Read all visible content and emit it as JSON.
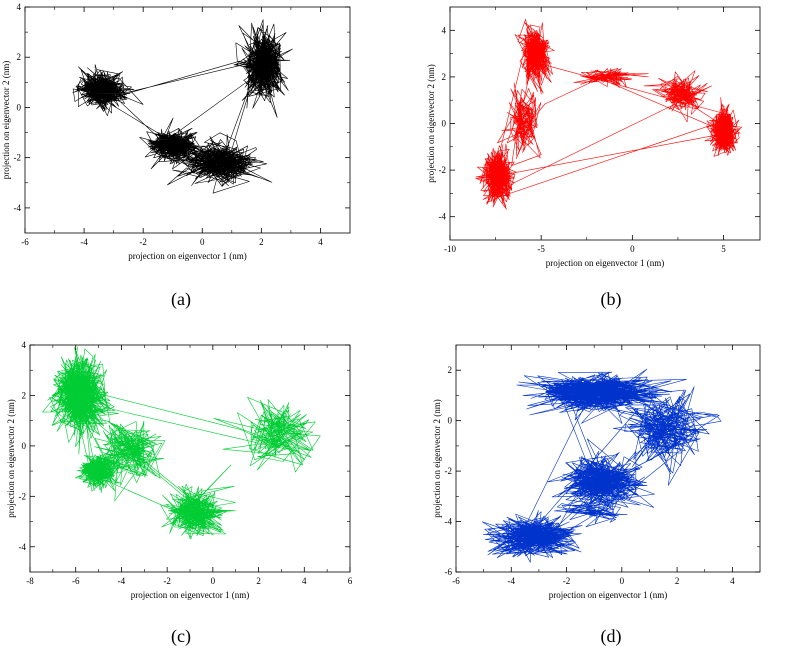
{
  "chart_data": [
    {
      "type": "line",
      "panel_label": "(a)",
      "xlabel": "projection on eigenvector 1 (nm)",
      "ylabel": "projection on eigenvector 2 (nm)",
      "xlim": [
        -6,
        5
      ],
      "ylim": [
        -5,
        4
      ],
      "xticks": [
        -6,
        -4,
        -2,
        0,
        2,
        4
      ],
      "yticks": [
        -4,
        -2,
        0,
        2,
        4
      ],
      "color": "#000000",
      "grid": false,
      "series": [
        {
          "clusters": [
            {
              "x": -3.4,
              "y": 0.7,
              "sx": 0.55,
              "sy": 0.45
            },
            {
              "x": 0.6,
              "y": -2.2,
              "sx": 0.8,
              "sy": 0.5
            },
            {
              "x": 2.1,
              "y": 1.7,
              "sx": 0.45,
              "sy": 0.8
            },
            {
              "x": -1.0,
              "y": -1.5,
              "sx": 0.5,
              "sy": 0.4
            }
          ]
        }
      ]
    },
    {
      "type": "line",
      "panel_label": "(b)",
      "xlabel": "projection on eigenvector 1 (nm)",
      "ylabel": "projection on eigenvector 2 (nm)",
      "xlim": [
        -10,
        7
      ],
      "ylim": [
        -5,
        5
      ],
      "xticks": [
        -10,
        -5,
        0,
        5
      ],
      "yticks": [
        -4,
        -2,
        0,
        2,
        4
      ],
      "color": "#ff0000",
      "grid": false,
      "series": [
        {
          "clusters": [
            {
              "x": -5.3,
              "y": 3.0,
              "sx": 0.5,
              "sy": 0.7
            },
            {
              "x": -6.0,
              "y": 0.0,
              "sx": 0.6,
              "sy": 0.9
            },
            {
              "x": -7.4,
              "y": -2.3,
              "sx": 0.5,
              "sy": 0.7
            },
            {
              "x": 2.6,
              "y": 1.3,
              "sx": 0.8,
              "sy": 0.45
            },
            {
              "x": 5.0,
              "y": -0.3,
              "sx": 0.45,
              "sy": 0.6
            },
            {
              "x": -1.2,
              "y": 2.0,
              "sx": 1.0,
              "sy": 0.25
            }
          ]
        }
      ]
    },
    {
      "type": "line",
      "panel_label": "(c)",
      "xlabel": "projection on eigenvector 1 (nm)",
      "ylabel": "projection on eigenvector 2 (nm)",
      "xlim": [
        -8,
        6
      ],
      "ylim": [
        -5,
        4
      ],
      "xticks": [
        -8,
        -6,
        -4,
        -2,
        0,
        2,
        4,
        6
      ],
      "yticks": [
        -4,
        -2,
        0,
        2,
        4
      ],
      "color": "#00cc33",
      "grid": false,
      "series": [
        {
          "clusters": [
            {
              "x": -5.8,
              "y": 2.0,
              "sx": 0.7,
              "sy": 0.9
            },
            {
              "x": -3.6,
              "y": -0.2,
              "sx": 0.9,
              "sy": 0.8
            },
            {
              "x": -0.8,
              "y": -2.6,
              "sx": 0.9,
              "sy": 0.6
            },
            {
              "x": 2.8,
              "y": 0.5,
              "sx": 1.1,
              "sy": 0.8
            },
            {
              "x": -5.0,
              "y": -1.0,
              "sx": 0.5,
              "sy": 0.4
            }
          ]
        }
      ]
    },
    {
      "type": "line",
      "panel_label": "(d)",
      "xlabel": "projection on eigenvector 1 (nm)",
      "ylabel": "projection on eigenvector 2 (nm)",
      "xlim": [
        -6,
        5
      ],
      "ylim": [
        -6,
        3
      ],
      "xticks": [
        -6,
        -4,
        -2,
        0,
        2,
        4
      ],
      "yticks": [
        -6,
        -4,
        -2,
        0,
        2
      ],
      "color": "#0033cc",
      "grid": false,
      "series": [
        {
          "clusters": [
            {
              "x": -1.0,
              "y": 1.1,
              "sx": 1.4,
              "sy": 0.45
            },
            {
              "x": 1.6,
              "y": -0.3,
              "sx": 1.0,
              "sy": 0.9
            },
            {
              "x": -0.8,
              "y": -2.4,
              "sx": 0.9,
              "sy": 0.6
            },
            {
              "x": -3.2,
              "y": -4.6,
              "sx": 1.0,
              "sy": 0.5
            },
            {
              "x": -1.2,
              "y": -3.6,
              "sx": 0.9,
              "sy": 0.35
            }
          ]
        }
      ]
    }
  ]
}
